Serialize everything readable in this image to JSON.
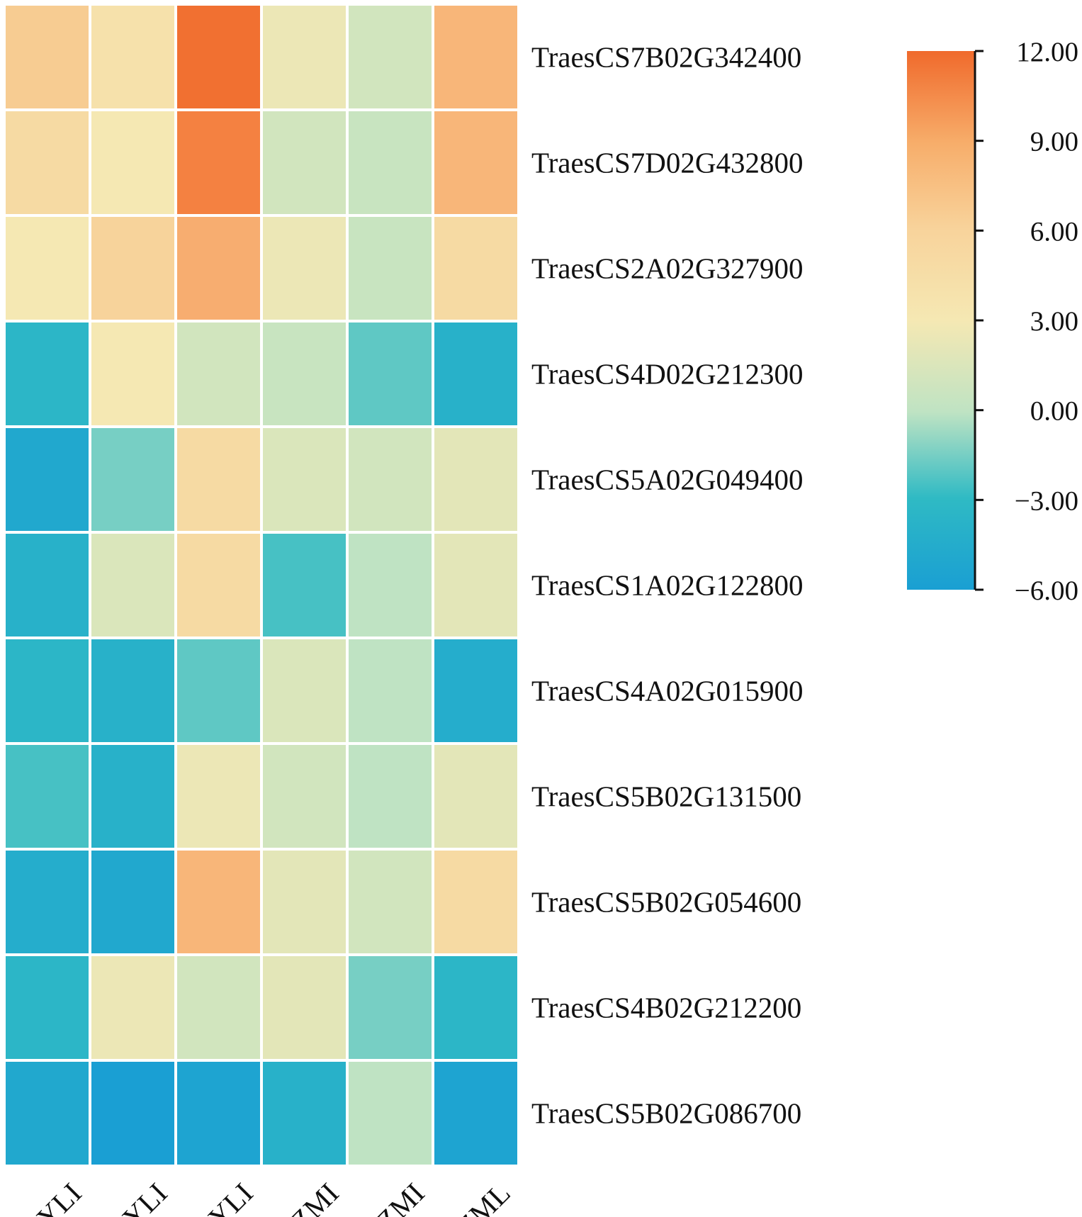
{
  "chart_data": {
    "type": "heatmap",
    "title": "",
    "xlabel": "",
    "ylabel": "",
    "columns": [
      "I-YLI",
      "II-YLI",
      "III-YLI",
      "I-ZMI",
      "II-ZMI",
      "III-ZML"
    ],
    "rows": [
      "TraesCS7B02G342400",
      "TraesCS7D02G432800",
      "TraesCS2A02G327900",
      "TraesCS4D02G212300",
      "TraesCS5A02G049400",
      "TraesCS1A02G122800",
      "TraesCS4A02G015900",
      "TraesCS5B02G131500",
      "TraesCS5B02G054600",
      "TraesCS4B02G212200",
      "TraesCS5B02G086700"
    ],
    "values": [
      [
        5.0,
        3.5,
        11.5,
        2.5,
        1.0,
        6.5
      ],
      [
        4.0,
        3.0,
        10.0,
        1.0,
        0.5,
        6.5
      ],
      [
        3.0,
        4.5,
        7.0,
        2.5,
        0.5,
        4.0
      ],
      [
        -3.5,
        3.0,
        1.0,
        0.5,
        -2.0,
        -4.0
      ],
      [
        -5.0,
        -1.5,
        4.0,
        1.5,
        1.0,
        2.0
      ],
      [
        -4.0,
        1.5,
        4.0,
        -2.5,
        0.0,
        2.0
      ],
      [
        -3.5,
        -4.0,
        -2.0,
        1.5,
        0.0,
        -4.5
      ],
      [
        -2.5,
        -4.0,
        2.5,
        1.0,
        0.0,
        2.0
      ],
      [
        -4.5,
        -5.0,
        6.5,
        2.0,
        1.0,
        4.0
      ],
      [
        -3.5,
        2.5,
        1.0,
        2.0,
        -1.5,
        -3.5
      ],
      [
        -5.0,
        -6.0,
        -5.5,
        -4.0,
        0.0,
        -5.5
      ]
    ],
    "colorbar": {
      "min": -6,
      "max": 12,
      "ticks": [
        "12.00",
        "9.00",
        "6.00",
        "3.00",
        "0.00",
        "−3.00",
        "−6.00"
      ],
      "tick_values": [
        12,
        9,
        6,
        3,
        0,
        -3,
        -6
      ]
    },
    "colors": {
      "low": "#1a9fd3",
      "mid_low": "#2fbac4",
      "mid": "#bfe3c3",
      "mid_high": "#f5e8b3",
      "high_mid": "#f7ad6a",
      "high": "#f06a2c"
    },
    "grid": false,
    "legend_placement": "right"
  }
}
